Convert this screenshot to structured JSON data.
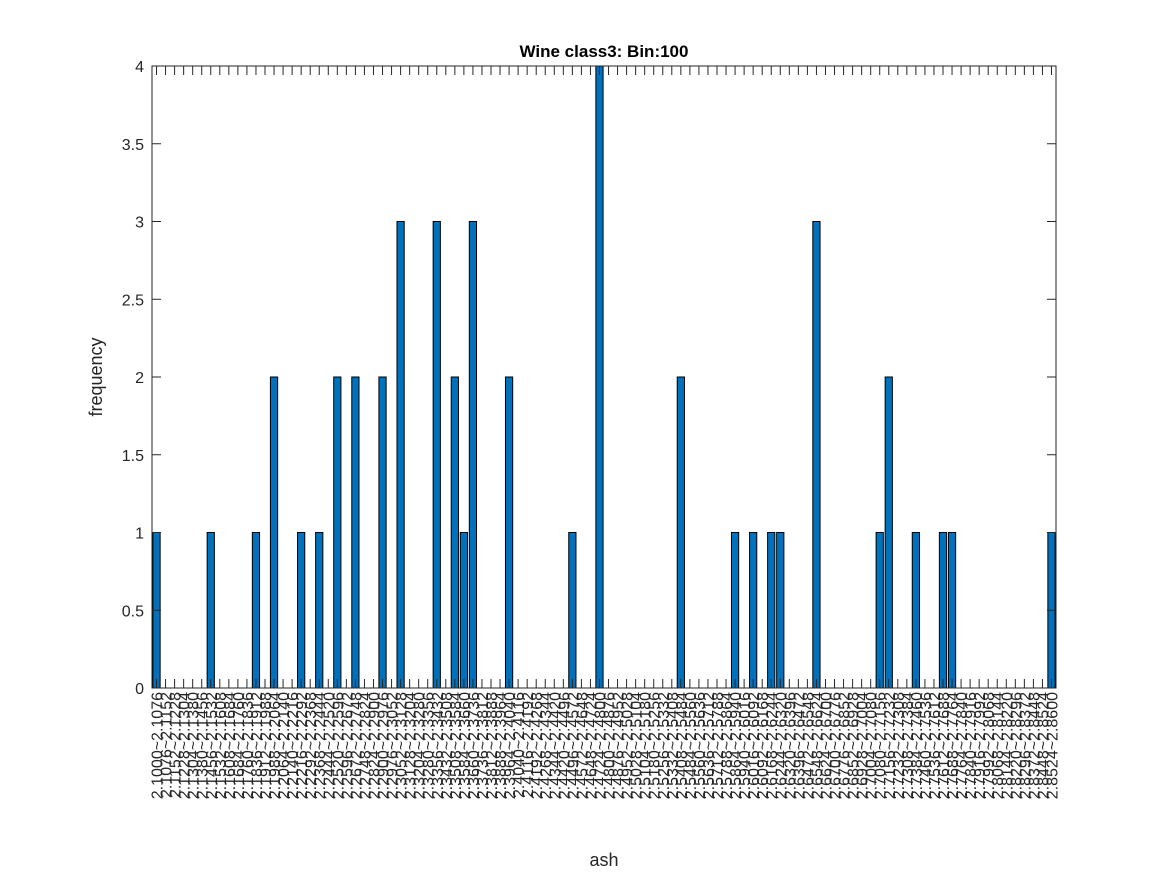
{
  "chart_data": {
    "type": "bar",
    "title": "Wine class3: Bin:100",
    "xlabel": "ash",
    "ylabel": "frequency",
    "ylim": [
      0,
      4
    ],
    "yticks": [
      "0",
      "0.5",
      "1",
      "1.5",
      "2",
      "2.5",
      "3",
      "3.5",
      "4"
    ],
    "grid": false,
    "bar_color": "#0072BD",
    "bin_range": [
      2.1,
      2.86
    ],
    "categories": [
      "2.1000~2.1076",
      "2.1076~2.1152",
      "2.1152~2.1228",
      "2.1228~2.1304",
      "2.1304~2.1380",
      "2.1380~2.1456",
      "2.1456~2.1532",
      "2.1532~2.1608",
      "2.1608~2.1684",
      "2.1684~2.1760",
      "2.1760~2.1836",
      "2.1836~2.1912",
      "2.1912~2.1988",
      "2.1988~2.2064",
      "2.2064~2.2140",
      "2.2140~2.2216",
      "2.2216~2.2292",
      "2.2292~2.2368",
      "2.2368~2.2444",
      "2.2444~2.2520",
      "2.2520~2.2596",
      "2.2596~2.2672",
      "2.2672~2.2748",
      "2.2748~2.2824",
      "2.2824~2.2900",
      "2.2900~2.2976",
      "2.2976~2.3052",
      "2.3052~2.3128",
      "2.3128~2.3204",
      "2.3204~2.3280",
      "2.3280~2.3356",
      "2.3356~2.3432",
      "2.3432~2.3508",
      "2.3508~2.3584",
      "2.3584~2.3660",
      "2.3660~2.3736",
      "2.3736~2.3812",
      "2.3812~2.3888",
      "2.3888~2.3964",
      "2.3964~2.4040",
      "2.4040~2.4116",
      "2.4116~2.4192",
      "2.4192~2.4268",
      "2.4268~2.4344",
      "2.4344~2.4420",
      "2.4420~2.4496",
      "2.4496~2.4572",
      "2.4572~2.4648",
      "2.4648~2.4724",
      "2.4724~2.4800",
      "2.4800~2.4876",
      "2.4876~2.4952",
      "2.4952~2.5028",
      "2.5028~2.5104",
      "2.5104~2.5180",
      "2.5180~2.5256",
      "2.5256~2.5332",
      "2.5332~2.5408",
      "2.5408~2.5484",
      "2.5484~2.5560",
      "2.5560~2.5636",
      "2.5636~2.5712",
      "2.5712~2.5788",
      "2.5788~2.5864",
      "2.5864~2.5940",
      "2.5940~2.6016",
      "2.6016~2.6092",
      "2.6092~2.6168",
      "2.6168~2.6244",
      "2.6244~2.6320",
      "2.6320~2.6396",
      "2.6396~2.6472",
      "2.6472~2.6548",
      "2.6548~2.6624",
      "2.6624~2.6700",
      "2.6700~2.6776",
      "2.6776~2.6852",
      "2.6852~2.6928",
      "2.6928~2.7004",
      "2.7004~2.7080",
      "2.7080~2.7156",
      "2.7156~2.7232",
      "2.7232~2.7308",
      "2.7308~2.7384",
      "2.7384~2.7460",
      "2.7460~2.7536",
      "2.7536~2.7612",
      "2.7612~2.7688",
      "2.7688~2.7764",
      "2.7764~2.7840",
      "2.7840~2.7916",
      "2.7916~2.7992",
      "2.7992~2.8068",
      "2.8068~2.8144",
      "2.8144~2.8220",
      "2.8220~2.8296",
      "2.8296~2.8372",
      "2.8372~2.8448",
      "2.8448~2.8524",
      "2.8524~2.8600"
    ],
    "values": [
      1,
      0,
      0,
      0,
      0,
      0,
      1,
      0,
      0,
      0,
      0,
      1,
      0,
      2,
      0,
      0,
      1,
      0,
      1,
      0,
      2,
      0,
      2,
      0,
      0,
      2,
      0,
      3,
      0,
      0,
      0,
      3,
      0,
      2,
      1,
      3,
      0,
      0,
      0,
      2,
      0,
      0,
      0,
      0,
      0,
      0,
      1,
      0,
      0,
      4,
      0,
      0,
      0,
      0,
      0,
      0,
      0,
      0,
      2,
      0,
      0,
      0,
      0,
      0,
      1,
      0,
      1,
      0,
      1,
      1,
      0,
      0,
      0,
      3,
      0,
      0,
      0,
      0,
      0,
      0,
      1,
      2,
      0,
      0,
      1,
      0,
      0,
      1,
      1,
      0,
      0,
      0,
      0,
      0,
      0,
      0,
      0,
      0,
      0,
      1
    ]
  }
}
